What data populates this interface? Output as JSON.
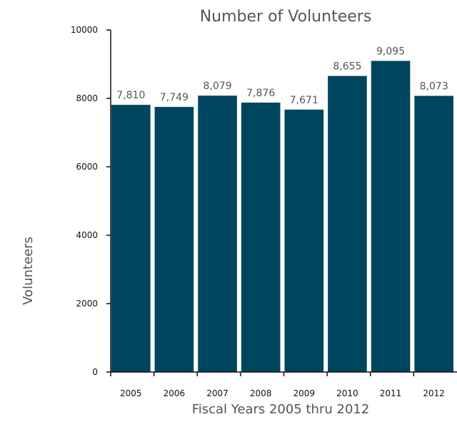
{
  "chart_data": {
    "type": "bar",
    "title": "Number of Volunteers",
    "xlabel": "Fiscal Years 2005 thru 2012",
    "ylabel": "Volunteers",
    "categories": [
      "2005",
      "2006",
      "2007",
      "2008",
      "2009",
      "2010",
      "2011",
      "2012"
    ],
    "values": [
      7810,
      7749,
      8079,
      7876,
      7671,
      8655,
      9095,
      8073
    ],
    "value_labels": [
      "7,810",
      "7,749",
      "8,079",
      "7,876",
      "7,671",
      "8,655",
      "9,095",
      "8,073"
    ],
    "y_ticks": [
      0,
      2000,
      4000,
      6000,
      8000,
      10000
    ],
    "ylim": [
      0,
      10000
    ],
    "grid": false,
    "legend": "none",
    "bar_color": "#004560"
  }
}
